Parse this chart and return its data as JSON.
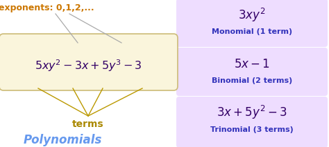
{
  "bg_color": "#ffffff",
  "fig_width": 4.74,
  "fig_height": 2.13,
  "exponent_text": "exponents: 0,1,2,...",
  "exponent_color": "#cc7700",
  "poly_box_color": "#faf5dc",
  "poly_box_edge": "#ccbb77",
  "poly_expr_color": "#330066",
  "poly_label": "terms",
  "poly_label_color": "#aa8800",
  "polynomials_text": "Polynomials",
  "polynomials_color": "#6699ee",
  "right_box_color": "#eeddff",
  "mono_expr": "$3xy^2$",
  "mono_label": "Monomial (1 term)",
  "bi_expr": "$5x - 1$",
  "bi_label": "Binomial (2 terms)",
  "tri_expr": "$3x + 5y^2 - 3$",
  "tri_label": "Trinomial (3 terms)",
  "expr_color": "#330066",
  "label_color": "#3333bb",
  "line_color": "#bb9900",
  "arrow_color": "#aaaaaa"
}
